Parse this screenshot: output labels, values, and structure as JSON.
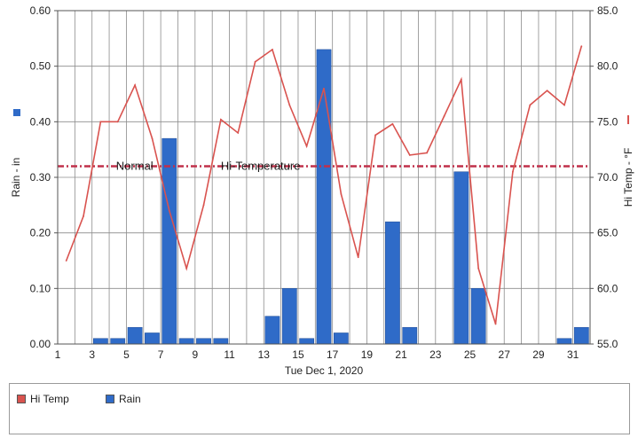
{
  "chart_data": {
    "type": "bar",
    "xlabel": "Tue Dec 1, 2020",
    "ylabel_left": "Rain - in",
    "ylabel_right": "Hi Temp - °F",
    "ylim_left": [
      0,
      0.6
    ],
    "ylim_right": [
      55,
      85
    ],
    "yticks_left": [
      "0.00",
      "0.10",
      "0.20",
      "0.30",
      "0.40",
      "0.50",
      "0.60"
    ],
    "yticks_right": [
      "55.0",
      "60.0",
      "65.0",
      "70.0",
      "75.0",
      "80.0",
      "85.0"
    ],
    "x_tick_labels": [
      "1",
      "3",
      "5",
      "7",
      "9",
      "11",
      "13",
      "15",
      "17",
      "19",
      "21",
      "23",
      "25",
      "27",
      "29",
      "31"
    ],
    "grid": true,
    "days": [
      1,
      2,
      3,
      4,
      5,
      6,
      7,
      8,
      9,
      10,
      11,
      12,
      13,
      14,
      15,
      16,
      17,
      18,
      19,
      20,
      21,
      22,
      23,
      24,
      25,
      26,
      27,
      28,
      29,
      30,
      31
    ],
    "series": [
      {
        "name": "Rain",
        "kind": "bar",
        "axis": "left",
        "color": "#2f6bc8",
        "values": [
          0,
          0,
          0.01,
          0.01,
          0.03,
          0.02,
          0.37,
          0.01,
          0.01,
          0.01,
          0,
          0,
          0.05,
          0.1,
          0.01,
          0.53,
          0.02,
          0,
          0,
          0.22,
          0.03,
          0,
          0,
          0.31,
          0.1,
          0,
          0,
          0,
          0,
          0.01,
          0.03
        ]
      },
      {
        "name": "Hi Temp",
        "kind": "line",
        "axis": "right",
        "color": "#d9534f",
        "values": [
          62.5,
          66.5,
          75.0,
          75.0,
          78.3,
          73.5,
          67.0,
          61.8,
          67.5,
          75.2,
          74.0,
          80.4,
          81.5,
          76.5,
          72.8,
          78.0,
          68.5,
          62.8,
          73.8,
          74.8,
          72.0,
          72.2,
          75.5,
          78.8,
          61.8,
          56.8,
          70.5,
          76.5,
          77.8,
          76.5,
          81.8
        ]
      }
    ],
    "normal_line": {
      "label_left": "Normal",
      "label_right": "Hi-Temperature",
      "value": 71.0,
      "axis": "right",
      "color": "#c0304a"
    }
  },
  "legend": {
    "hitemp_label": "Hi Temp",
    "rain_label": "Rain",
    "hitemp_color": "#d9534f",
    "rain_color": "#2f6bc8"
  }
}
